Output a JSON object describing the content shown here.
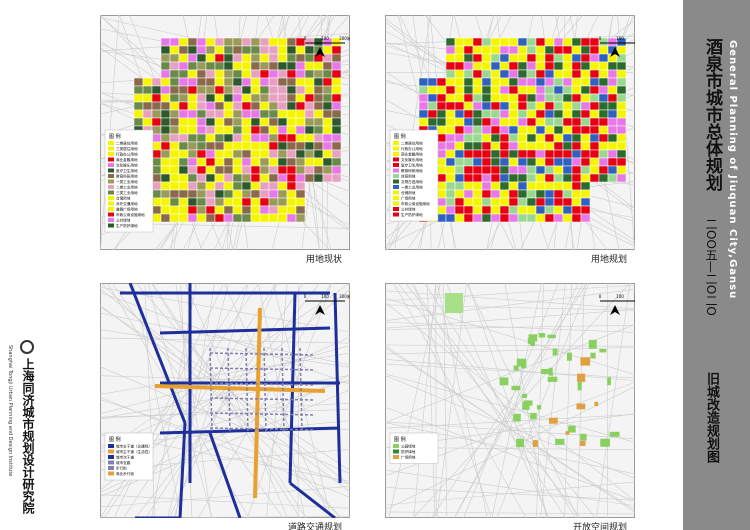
{
  "header": {
    "title": "酒泉市城市总体规划",
    "period": "二OO五—二O二O",
    "english_title": "General Planning of Jiuquan City,Gansu",
    "subtitle": "旧城改造规划图"
  },
  "institute": {
    "name": "上海同济城市规划设计研究院",
    "english": "Shanghai Tongji Urban Planning and Design Institute"
  },
  "scale": {
    "labels": [
      "0",
      "100",
      "300米"
    ]
  },
  "panels": [
    {
      "caption": "用地现状",
      "legend_title": "图 例",
      "legend": [
        "二类居住用地",
        "三类居住用地",
        "行政办公用地",
        "商业金融用地",
        "文化娱乐用地",
        "医疗卫生用地",
        "教育科研用地",
        "一类工业用地",
        "二类工业用地",
        "三类工业用地",
        "仓储用地",
        "对外交通用地",
        "道路广场用地",
        "市政公用设施用地",
        "公共绿地",
        "生产防护绿地"
      ]
    },
    {
      "caption": "用地规划",
      "legend_title": "图 例",
      "legend": [
        "二类居住用地",
        "行政办公用地",
        "商业金融用地",
        "文化娱乐用地",
        "医疗卫生用地",
        "教育科研用地",
        "体育用地",
        "文物古迹用地",
        "一类工业用地",
        "仓储用地",
        "广场用地",
        "市政公用设施用地",
        "公共绿地",
        "生产防护绿地"
      ]
    },
    {
      "caption": "道路交通规划",
      "legend_title": "图 例",
      "legend": [
        "城市主干道（交通性）",
        "城市主干道（生活性）",
        "城市次干道",
        "城市支路",
        "步行街",
        "商业步行街"
      ]
    },
    {
      "caption": "开放空间规划",
      "legend_title": "图 例",
      "legend": [
        "公园绿地",
        "防护绿地",
        "广场用地"
      ]
    }
  ]
}
